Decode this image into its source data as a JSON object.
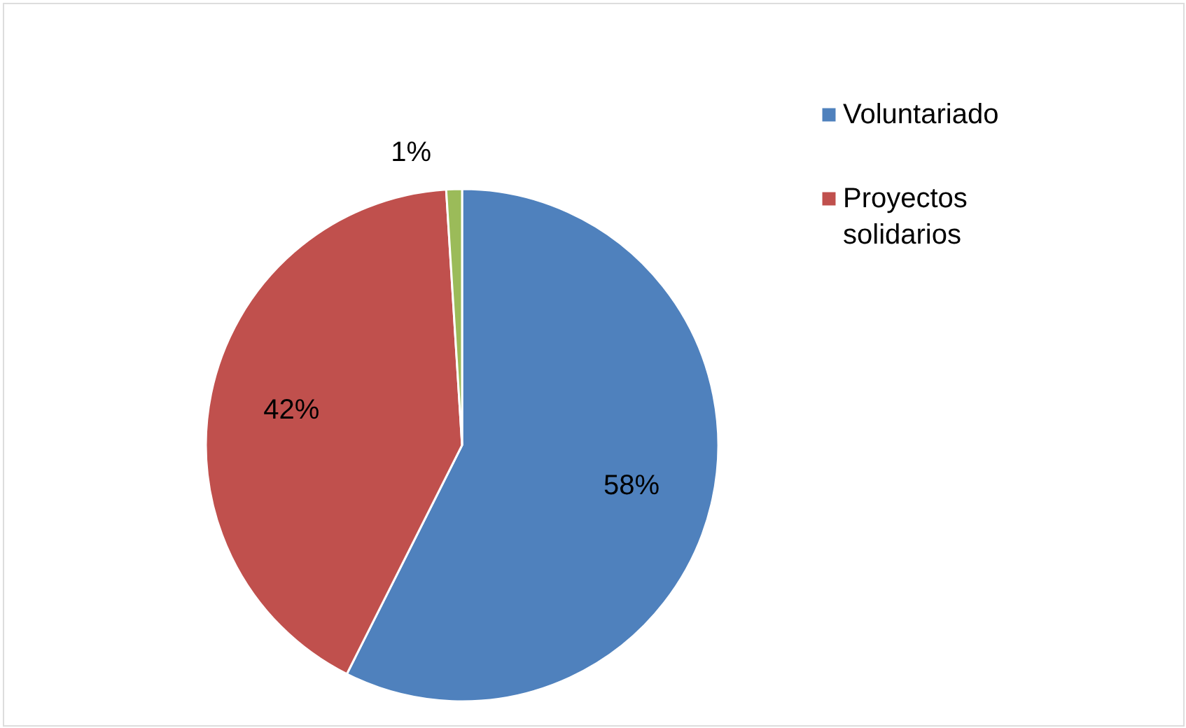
{
  "chart_data": {
    "type": "pie",
    "categories": [
      "Voluntariado",
      "Proyectos solidarios",
      null
    ],
    "values": [
      58,
      42,
      1
    ],
    "colors": [
      "#4f81bd",
      "#c0504d",
      "#9bbb59"
    ],
    "value_labels": [
      "58%",
      "42%",
      "1%"
    ],
    "legend": "top right"
  }
}
